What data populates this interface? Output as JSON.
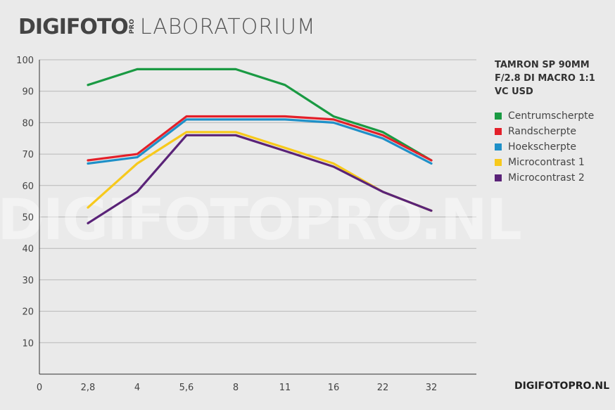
{
  "header": {
    "logo_main": "DIGIFOTO",
    "logo_pro": "PRO",
    "subtitle": "LABORATORIUM"
  },
  "watermark": "DIGIFOTOPRO.NL",
  "footer_brand": "DIGIFOTOPRO.NL",
  "chart_data": {
    "type": "line",
    "title": "TAMRON SP 90MM F/2.8 DI MACRO 1:1 VC USD",
    "title_lines": [
      "TAMRON SP 90MM",
      "F/2.8 DI MACRO 1:1",
      "VC USD"
    ],
    "xlabel": "",
    "ylabel": "",
    "x_tick_labels": [
      "0",
      "2,8",
      "4",
      "5,6",
      "8",
      "11",
      "16",
      "22",
      "32"
    ],
    "categories": [
      "2,8",
      "4",
      "5,6",
      "8",
      "11",
      "16",
      "22",
      "32"
    ],
    "y_ticks": [
      10,
      20,
      30,
      40,
      50,
      60,
      70,
      80,
      90,
      100
    ],
    "ylim": [
      0,
      100
    ],
    "grid": true,
    "legend_position": "right",
    "series": [
      {
        "name": "Centrumscherpte",
        "color": "#1a9a43",
        "values": [
          92,
          97,
          97,
          97,
          92,
          82,
          77,
          68
        ]
      },
      {
        "name": "Randscherpte",
        "color": "#e3202a",
        "values": [
          68,
          70,
          82,
          82,
          82,
          81,
          76,
          68
        ]
      },
      {
        "name": "Hoekscherpte",
        "color": "#1f90c8",
        "values": [
          67,
          69,
          81,
          81,
          81,
          80,
          75,
          67
        ]
      },
      {
        "name": "Microcontrast 1",
        "color": "#f7c91c",
        "values": [
          53,
          67,
          77,
          77,
          72,
          67,
          58,
          52
        ]
      },
      {
        "name": "Microcontrast 2",
        "color": "#5a2378",
        "values": [
          48,
          58,
          76,
          76,
          71,
          66,
          58,
          52
        ]
      }
    ]
  }
}
